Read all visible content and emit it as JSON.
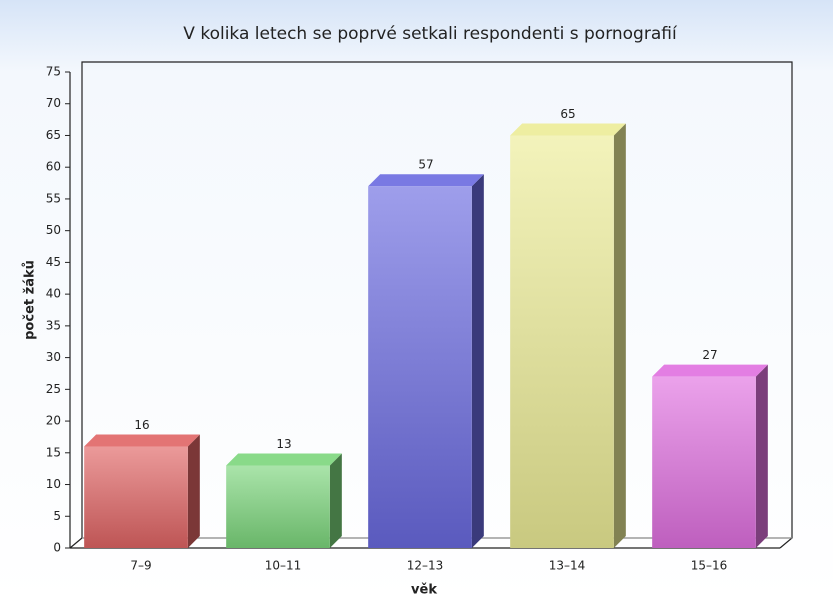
{
  "chart_data": {
    "type": "bar3d",
    "title": "V kolika letech se poprvé setkali respondenti s pornografií",
    "x_label": "věk",
    "y_label": "počet žáků",
    "categories": [
      "7–9",
      "10–11",
      "12–13",
      "13–14",
      "15–16"
    ],
    "values": [
      16,
      13,
      57,
      65,
      27
    ],
    "colors": [
      "#e06464",
      "#7cd67c",
      "#6a6ae0",
      "#ecec96",
      "#e070e0"
    ],
    "ylim": [
      0,
      75
    ],
    "yticks": [
      0,
      5,
      10,
      15,
      20,
      25,
      30,
      35,
      40,
      45,
      50,
      55,
      60,
      65,
      70,
      75
    ],
    "grid": false
  }
}
